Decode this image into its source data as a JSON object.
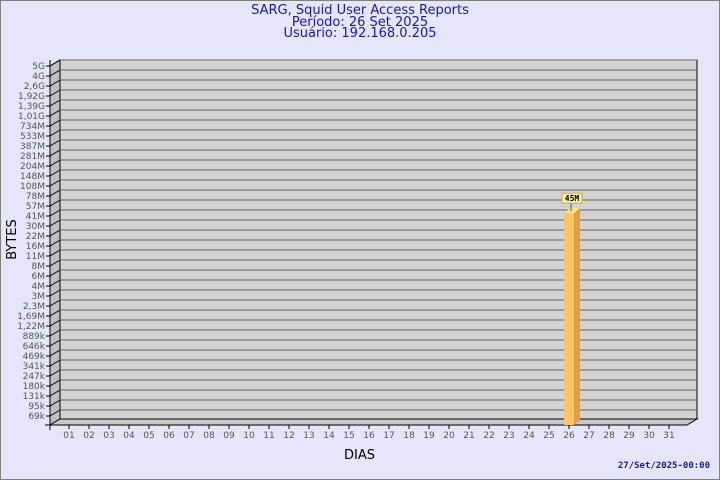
{
  "header": {
    "title": "SARG, Squid User Access Reports",
    "period": "Período: 26 Set 2025",
    "user": "Usuário: 192.168.0.205"
  },
  "footer": "27/Set/2025-00:00",
  "colors": {
    "background": "#e6e6fa",
    "plot": "#d3d3d3",
    "bar": "#ffc466",
    "bar_side": "#dda044",
    "title": "#1a1aa0"
  },
  "chart_data": {
    "type": "bar",
    "xlabel": "DIAS",
    "ylabel": "BYTES",
    "y_scale": "log",
    "grid": true,
    "y_ticks": [
      "5G",
      "4G",
      "2,6G",
      "1,92G",
      "1,39G",
      "1,01G",
      "734M",
      "533M",
      "387M",
      "281M",
      "204M",
      "148M",
      "108M",
      "78M",
      "57M",
      "41M",
      "30M",
      "22M",
      "16M",
      "11M",
      "8M",
      "6M",
      "4M",
      "3M",
      "2,3M",
      "1,69M",
      "1,22M",
      "889k",
      "646k",
      "469k",
      "341k",
      "247k",
      "180k",
      "131k",
      "95k",
      "69k"
    ],
    "categories": [
      "01",
      "02",
      "03",
      "04",
      "05",
      "06",
      "07",
      "08",
      "09",
      "10",
      "11",
      "12",
      "13",
      "14",
      "15",
      "16",
      "17",
      "18",
      "19",
      "20",
      "21",
      "22",
      "23",
      "24",
      "25",
      "26",
      "27",
      "28",
      "29",
      "30",
      "31"
    ],
    "series": [
      {
        "values": [
          {
            "day": "26",
            "value": 45000000,
            "label": "45M"
          }
        ]
      }
    ]
  }
}
